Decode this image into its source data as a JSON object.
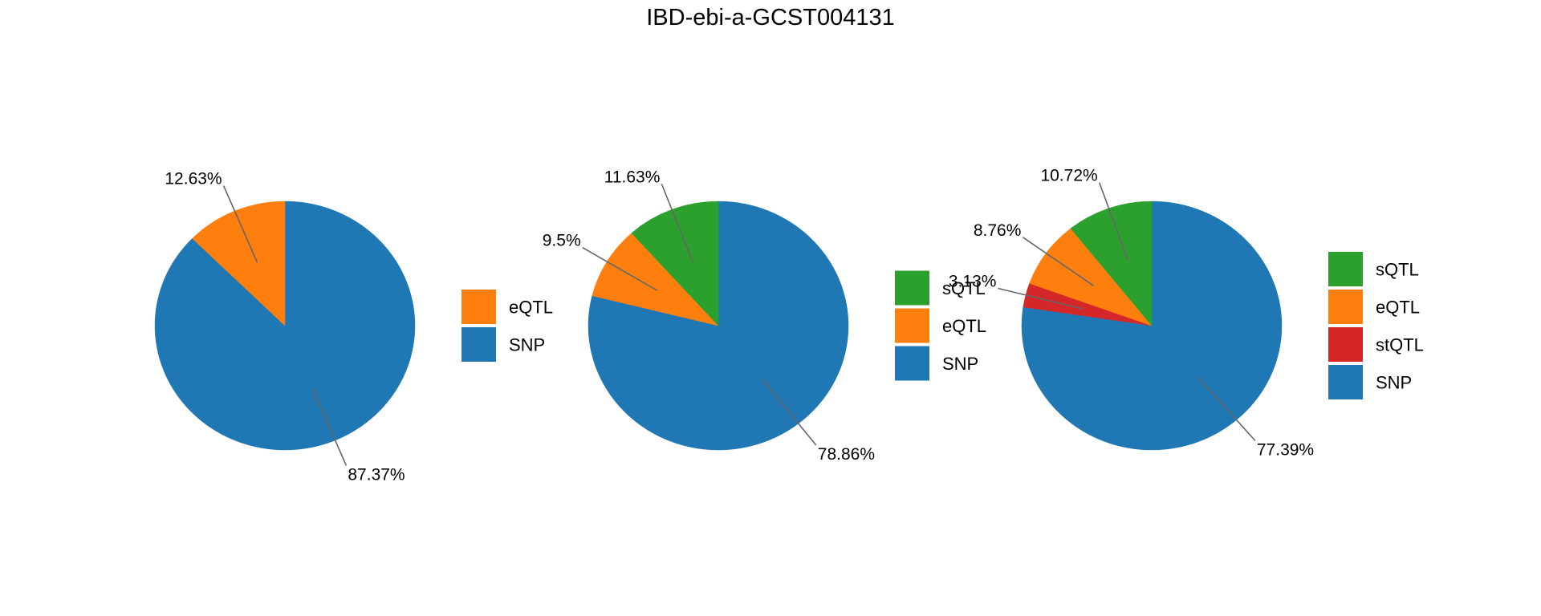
{
  "title": "IBD-ebi-a-GCST004131",
  "colors": {
    "SNP": "#1f77b4",
    "eQTL": "#ff7f0e",
    "sQTL": "#2ca02c",
    "stQTL": "#d62728",
    "leader": "#666666",
    "text": "#000000"
  },
  "chart_data": [
    {
      "type": "pie",
      "title": "IBD-ebi-a-GCST004131",
      "slices": [
        {
          "name": "SNP",
          "value": 87.37,
          "label": "87.37%"
        },
        {
          "name": "eQTL",
          "value": 12.63,
          "label": "12.63%"
        }
      ],
      "legend": [
        "eQTL",
        "SNP"
      ],
      "legend_position": "right"
    },
    {
      "type": "pie",
      "title": "IBD-ebi-a-GCST004131",
      "slices": [
        {
          "name": "SNP",
          "value": 78.86,
          "label": "78.86%"
        },
        {
          "name": "eQTL",
          "value": 9.5,
          "label": "9.5%"
        },
        {
          "name": "sQTL",
          "value": 11.63,
          "label": "11.63%"
        }
      ],
      "legend": [
        "sQTL",
        "eQTL",
        "SNP"
      ],
      "legend_position": "right"
    },
    {
      "type": "pie",
      "title": "IBD-ebi-a-GCST004131",
      "slices": [
        {
          "name": "SNP",
          "value": 77.39,
          "label": "77.39%"
        },
        {
          "name": "stQTL",
          "value": 3.13,
          "label": "3.13%"
        },
        {
          "name": "eQTL",
          "value": 8.76,
          "label": "8.76%"
        },
        {
          "name": "sQTL",
          "value": 10.72,
          "label": "10.72%"
        }
      ],
      "legend": [
        "sQTL",
        "eQTL",
        "stQTL",
        "SNP"
      ],
      "legend_position": "right"
    }
  ]
}
